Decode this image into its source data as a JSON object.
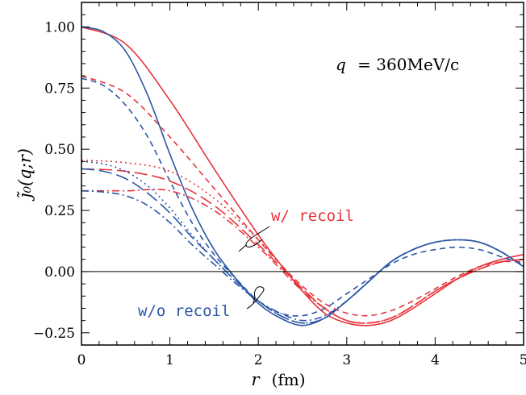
{
  "chart_data": {
    "type": "line",
    "xlabel_var": "r",
    "xlabel_unit": "(fm)",
    "ylabel": "j̃₀(q;r)",
    "xlim": [
      0,
      5
    ],
    "ylim": [
      -0.3,
      1.1
    ],
    "x_ticks": [
      "0",
      "1",
      "2",
      "3",
      "4",
      "5"
    ],
    "y_ticks": [
      "−0.25",
      "0.00",
      "0.25",
      "0.50",
      "0.75",
      "1.00"
    ],
    "annotation_q_var": "q",
    "annotation_q_value": "= 360MeV/c",
    "colors": {
      "w_recoil": "#e8333a",
      "wo_recoil": "#2a57a6",
      "axis": "#000000"
    },
    "annotations": [
      {
        "text": "w/ recoil",
        "color": "#e8333a"
      },
      {
        "text": "w/o recoil",
        "color": "#2a57a6"
      }
    ],
    "series": [
      {
        "group": "w_recoil",
        "style": "solid",
        "points": [
          [
            0,
            1.0
          ],
          [
            0.5,
            0.93
          ],
          [
            1.0,
            0.7
          ],
          [
            1.5,
            0.42
          ],
          [
            2.0,
            0.15
          ],
          [
            2.25,
            0.03
          ],
          [
            2.5,
            -0.08
          ],
          [
            2.75,
            -0.17
          ],
          [
            3.0,
            -0.21
          ],
          [
            3.25,
            -0.22
          ],
          [
            3.5,
            -0.2
          ],
          [
            3.75,
            -0.15
          ],
          [
            4.0,
            -0.09
          ],
          [
            4.25,
            -0.03
          ],
          [
            4.5,
            0.02
          ],
          [
            4.75,
            0.05
          ],
          [
            5.0,
            0.07
          ]
        ]
      },
      {
        "group": "wo_recoil",
        "style": "solid",
        "points": [
          [
            0,
            1.0
          ],
          [
            0.25,
            0.98
          ],
          [
            0.5,
            0.9
          ],
          [
            0.75,
            0.72
          ],
          [
            1.0,
            0.48
          ],
          [
            1.25,
            0.26
          ],
          [
            1.5,
            0.09
          ],
          [
            1.75,
            -0.03
          ],
          [
            2.0,
            -0.13
          ],
          [
            2.25,
            -0.19
          ],
          [
            2.5,
            -0.22
          ],
          [
            2.75,
            -0.19
          ],
          [
            3.0,
            -0.12
          ],
          [
            3.25,
            -0.04
          ],
          [
            3.5,
            0.04
          ],
          [
            3.75,
            0.09
          ],
          [
            4.0,
            0.12
          ],
          [
            4.25,
            0.13
          ],
          [
            4.5,
            0.12
          ],
          [
            4.75,
            0.08
          ],
          [
            5.0,
            0.02
          ]
        ]
      },
      {
        "group": "w_recoil",
        "style": "dashed",
        "points": [
          [
            0,
            0.8
          ],
          [
            0.5,
            0.73
          ],
          [
            1.0,
            0.55
          ],
          [
            1.5,
            0.34
          ],
          [
            2.0,
            0.13
          ],
          [
            2.25,
            0.03
          ],
          [
            2.5,
            -0.06
          ],
          [
            2.75,
            -0.13
          ],
          [
            3.0,
            -0.17
          ],
          [
            3.25,
            -0.18
          ],
          [
            3.5,
            -0.16
          ],
          [
            3.75,
            -0.12
          ],
          [
            4.0,
            -0.07
          ],
          [
            4.25,
            -0.02
          ],
          [
            4.5,
            0.02
          ],
          [
            4.75,
            0.04
          ],
          [
            5.0,
            0.04
          ]
        ]
      },
      {
        "group": "wo_recoil",
        "style": "dashed",
        "points": [
          [
            0,
            0.79
          ],
          [
            0.25,
            0.76
          ],
          [
            0.5,
            0.68
          ],
          [
            0.75,
            0.55
          ],
          [
            1.0,
            0.37
          ],
          [
            1.25,
            0.2
          ],
          [
            1.5,
            0.07
          ],
          [
            1.75,
            -0.03
          ],
          [
            2.0,
            -0.12
          ],
          [
            2.25,
            -0.17
          ],
          [
            2.5,
            -0.18
          ],
          [
            2.75,
            -0.15
          ],
          [
            3.0,
            -0.09
          ],
          [
            3.25,
            -0.03
          ],
          [
            3.5,
            0.03
          ],
          [
            3.75,
            0.07
          ],
          [
            4.0,
            0.09
          ],
          [
            4.25,
            0.1
          ],
          [
            4.5,
            0.09
          ],
          [
            4.75,
            0.06
          ],
          [
            5.0,
            0.03
          ]
        ]
      },
      {
        "group": "w_recoil",
        "style": "longdash",
        "points": [
          [
            0,
            0.42
          ],
          [
            0.5,
            0.41
          ],
          [
            1.0,
            0.37
          ],
          [
            1.5,
            0.27
          ],
          [
            2.0,
            0.11
          ],
          [
            2.25,
            0.02
          ],
          [
            2.5,
            -0.07
          ],
          [
            2.75,
            -0.15
          ],
          [
            3.0,
            -0.2
          ],
          [
            3.25,
            -0.21
          ],
          [
            3.5,
            -0.19
          ],
          [
            3.75,
            -0.14
          ],
          [
            4.0,
            -0.08
          ],
          [
            4.25,
            -0.03
          ],
          [
            4.5,
            0.01
          ],
          [
            4.75,
            0.04
          ],
          [
            5.0,
            0.05
          ]
        ]
      },
      {
        "group": "wo_recoil",
        "style": "longdash",
        "points": [
          [
            0,
            0.42
          ],
          [
            0.25,
            0.41
          ],
          [
            0.5,
            0.38
          ],
          [
            0.75,
            0.32
          ],
          [
            1.0,
            0.24
          ],
          [
            1.25,
            0.14
          ],
          [
            1.5,
            0.05
          ],
          [
            1.75,
            -0.04
          ],
          [
            2.0,
            -0.12
          ],
          [
            2.25,
            -0.18
          ],
          [
            2.5,
            -0.21
          ],
          [
            2.75,
            -0.19
          ],
          [
            3.0,
            -0.12
          ],
          [
            3.25,
            -0.04
          ],
          [
            3.5,
            0.04
          ],
          [
            3.75,
            0.09
          ],
          [
            4.0,
            0.12
          ],
          [
            4.25,
            0.13
          ],
          [
            4.5,
            0.12
          ],
          [
            4.75,
            0.08
          ],
          [
            5.0,
            0.02
          ]
        ]
      },
      {
        "group": "w_recoil",
        "style": "dotted",
        "points": [
          [
            0,
            0.455
          ],
          [
            0.5,
            0.445
          ],
          [
            1.0,
            0.41
          ],
          [
            1.5,
            0.3
          ],
          [
            2.0,
            0.13
          ],
          [
            2.25,
            0.03
          ],
          [
            2.5,
            -0.07
          ],
          [
            2.75,
            -0.15
          ],
          [
            3.0,
            -0.2
          ],
          [
            3.25,
            -0.21
          ],
          [
            3.5,
            -0.19
          ],
          [
            3.75,
            -0.14
          ],
          [
            4.0,
            -0.08
          ],
          [
            4.25,
            -0.03
          ],
          [
            4.5,
            0.01
          ],
          [
            4.75,
            0.04
          ],
          [
            5.0,
            0.05
          ]
        ]
      },
      {
        "group": "wo_recoil",
        "style": "dotted",
        "points": [
          [
            0,
            0.45
          ],
          [
            0.25,
            0.44
          ],
          [
            0.5,
            0.41
          ],
          [
            0.75,
            0.35
          ],
          [
            1.0,
            0.26
          ],
          [
            1.25,
            0.15
          ],
          [
            1.5,
            0.05
          ],
          [
            1.75,
            -0.04
          ],
          [
            2.0,
            -0.12
          ],
          [
            2.25,
            -0.18
          ],
          [
            2.5,
            -0.21
          ],
          [
            2.75,
            -0.19
          ],
          [
            3.0,
            -0.12
          ],
          [
            3.25,
            -0.04
          ],
          [
            3.5,
            0.04
          ],
          [
            3.75,
            0.09
          ],
          [
            4.0,
            0.12
          ],
          [
            4.25,
            0.13
          ],
          [
            4.5,
            0.12
          ],
          [
            4.75,
            0.08
          ],
          [
            5.0,
            0.02
          ]
        ]
      },
      {
        "group": "w_recoil",
        "style": "dashdot",
        "points": [
          [
            0,
            0.33
          ],
          [
            0.5,
            0.33
          ],
          [
            1.0,
            0.33
          ],
          [
            1.5,
            0.25
          ],
          [
            2.0,
            0.1
          ],
          [
            2.25,
            0.01
          ],
          [
            2.5,
            -0.08
          ],
          [
            2.75,
            -0.15
          ],
          [
            3.0,
            -0.2
          ],
          [
            3.25,
            -0.21
          ],
          [
            3.5,
            -0.19
          ],
          [
            3.75,
            -0.14
          ],
          [
            4.0,
            -0.08
          ],
          [
            4.25,
            -0.03
          ],
          [
            4.5,
            0.01
          ],
          [
            4.75,
            0.04
          ],
          [
            5.0,
            0.05
          ]
        ]
      },
      {
        "group": "wo_recoil",
        "style": "dashdot",
        "points": [
          [
            0,
            0.33
          ],
          [
            0.25,
            0.325
          ],
          [
            0.5,
            0.31
          ],
          [
            0.75,
            0.27
          ],
          [
            1.0,
            0.2
          ],
          [
            1.25,
            0.11
          ],
          [
            1.5,
            0.03
          ],
          [
            1.75,
            -0.05
          ],
          [
            2.0,
            -0.12
          ],
          [
            2.25,
            -0.17
          ],
          [
            2.5,
            -0.2
          ],
          [
            2.75,
            -0.18
          ],
          [
            3.0,
            -0.12
          ],
          [
            3.25,
            -0.04
          ],
          [
            3.5,
            0.04
          ],
          [
            3.75,
            0.09
          ],
          [
            4.0,
            0.12
          ],
          [
            4.25,
            0.13
          ],
          [
            4.5,
            0.12
          ],
          [
            4.75,
            0.08
          ],
          [
            5.0,
            0.02
          ]
        ]
      }
    ]
  }
}
